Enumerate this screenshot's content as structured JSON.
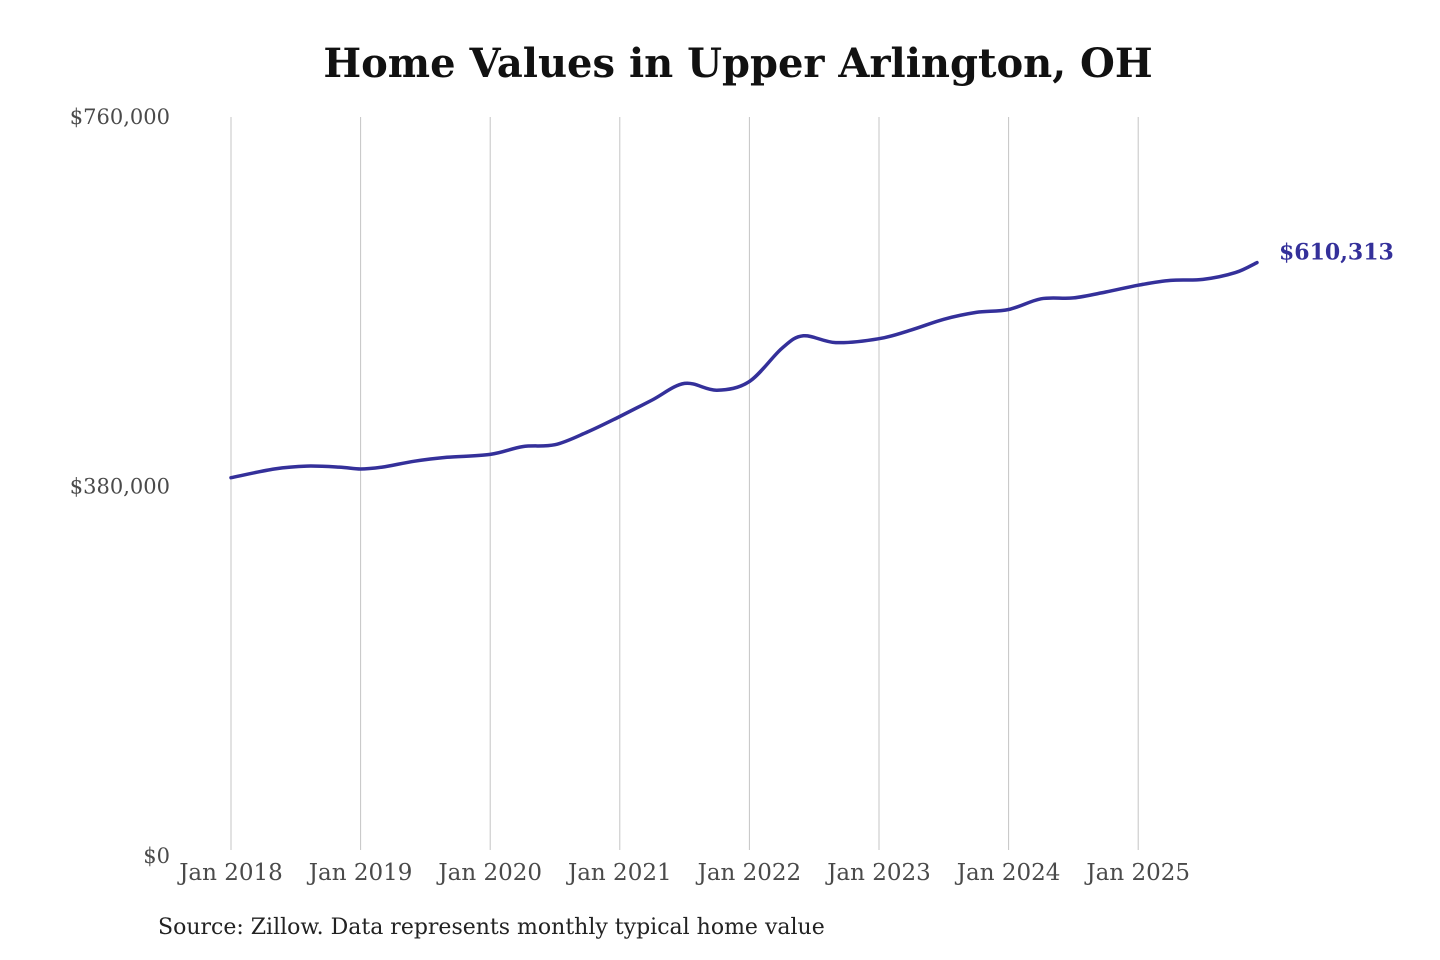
{
  "chart_data": {
    "type": "line",
    "title": "Home Values in Upper Arlington, OH",
    "xlabel": "",
    "ylabel": "",
    "ylim": [
      0,
      760000
    ],
    "y_ticks": [
      {
        "value": 0,
        "label": "$0"
      },
      {
        "value": 380000,
        "label": "$380,000"
      },
      {
        "value": 760000,
        "label": "$760,000"
      }
    ],
    "x_ticks": [
      {
        "value": "2018-01",
        "label": "Jan 2018"
      },
      {
        "value": "2019-01",
        "label": "Jan 2019"
      },
      {
        "value": "2020-01",
        "label": "Jan 2020"
      },
      {
        "value": "2021-01",
        "label": "Jan 2021"
      },
      {
        "value": "2022-01",
        "label": "Jan 2022"
      },
      {
        "value": "2023-01",
        "label": "Jan 2023"
      },
      {
        "value": "2024-01",
        "label": "Jan 2024"
      },
      {
        "value": "2025-01",
        "label": "Jan 2025"
      }
    ],
    "grid": {
      "vertical": true,
      "horizontal": false
    },
    "series": [
      {
        "color": "#34309a",
        "points": [
          {
            "x": "2018-01",
            "y": 389000
          },
          {
            "x": "2018-05",
            "y": 398000
          },
          {
            "x": "2018-08",
            "y": 401000
          },
          {
            "x": "2018-11",
            "y": 400000
          },
          {
            "x": "2019-01",
            "y": 398000
          },
          {
            "x": "2019-03",
            "y": 400000
          },
          {
            "x": "2019-06",
            "y": 406000
          },
          {
            "x": "2019-09",
            "y": 410000
          },
          {
            "x": "2020-01",
            "y": 413000
          },
          {
            "x": "2020-04",
            "y": 421000
          },
          {
            "x": "2020-07",
            "y": 423000
          },
          {
            "x": "2020-10",
            "y": 436000
          },
          {
            "x": "2021-01",
            "y": 452000
          },
          {
            "x": "2021-04",
            "y": 469000
          },
          {
            "x": "2021-07",
            "y": 486000
          },
          {
            "x": "2021-10",
            "y": 479000
          },
          {
            "x": "2022-01",
            "y": 488000
          },
          {
            "x": "2022-04",
            "y": 522000
          },
          {
            "x": "2022-06",
            "y": 535000
          },
          {
            "x": "2022-09",
            "y": 528000
          },
          {
            "x": "2023-01",
            "y": 532000
          },
          {
            "x": "2023-04",
            "y": 541000
          },
          {
            "x": "2023-07",
            "y": 552000
          },
          {
            "x": "2023-10",
            "y": 559000
          },
          {
            "x": "2024-01",
            "y": 562000
          },
          {
            "x": "2024-04",
            "y": 573000
          },
          {
            "x": "2024-07",
            "y": 574000
          },
          {
            "x": "2024-10",
            "y": 580000
          },
          {
            "x": "2025-01",
            "y": 587000
          },
          {
            "x": "2025-04",
            "y": 592000
          },
          {
            "x": "2025-07",
            "y": 593000
          },
          {
            "x": "2025-10",
            "y": 600000
          },
          {
            "x": "2025-12",
            "y": 610313
          }
        ],
        "end_label": "$610,313"
      }
    ]
  },
  "source_note": "Source: Zillow. Data represents monthly typical home value"
}
